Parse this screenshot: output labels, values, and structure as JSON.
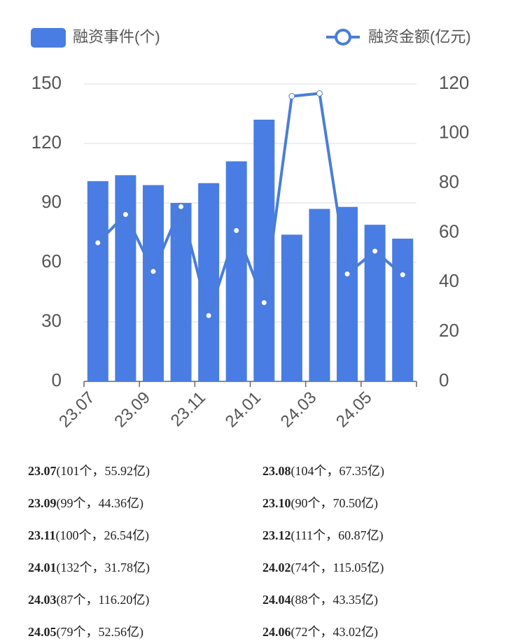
{
  "chart_data": {
    "type": "bar",
    "categories": [
      "23.07",
      "23.08",
      "23.09",
      "23.10",
      "23.11",
      "23.12",
      "24.01",
      "24.02",
      "24.03",
      "24.04",
      "24.05",
      "24.06"
    ],
    "series": [
      {
        "name": "融资事件(个)",
        "type": "bar",
        "color": "#4a7de3",
        "values": [
          101,
          104,
          99,
          90,
          100,
          111,
          132,
          74,
          87,
          88,
          79,
          72
        ]
      },
      {
        "name": "融资金额(亿元)",
        "type": "line",
        "axis": "y2",
        "color": "#4a7dd8",
        "values": [
          55.92,
          67.35,
          44.36,
          70.5,
          26.54,
          60.87,
          31.78,
          115.05,
          116.2,
          43.35,
          52.56,
          43.02
        ]
      }
    ],
    "ylim": [
      0,
      150
    ],
    "yticks": [
      0,
      30,
      60,
      90,
      120,
      150
    ],
    "y2lim": [
      0,
      120
    ],
    "y2ticks": [
      0,
      20,
      40,
      60,
      80,
      100,
      120
    ],
    "grid": true
  },
  "table": {
    "rows": [
      "(101个，55.92亿)",
      "(104个，67.35亿)",
      "(99个，44.36亿)",
      "(90个，70.50亿)",
      "(100个，26.54亿)",
      "(111个，60.87亿)",
      "(132个，31.78亿)",
      "(74个，115.05亿)",
      "(87个，116.20亿)",
      "(88个，43.35亿)",
      "(79个，52.56亿)",
      "(72个，43.02亿)"
    ]
  }
}
